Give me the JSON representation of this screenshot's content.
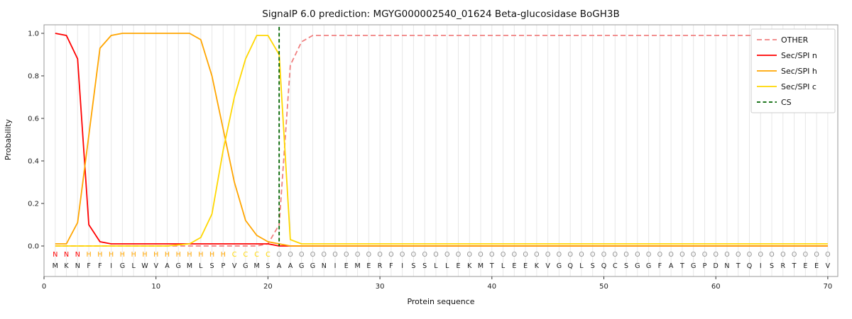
{
  "chart_data": {
    "type": "line",
    "title": "SignalP 6.0 prediction: MGYG000002540_01624 Beta-glucosidase BoGH3B",
    "xlabel": "Protein sequence",
    "ylabel": "Probability",
    "x_ticks": [
      0,
      10,
      20,
      30,
      40,
      50,
      60,
      70
    ],
    "y_ticks": [
      0,
      0.2,
      0.4,
      0.6,
      0.8,
      1.0
    ],
    "xlim": [
      0,
      71
    ],
    "ylim": [
      0,
      1.05
    ],
    "grid": "vertical line per residue",
    "legend_position": "upper right",
    "series": [
      {
        "name": "OTHER",
        "color": "#f08080",
        "dash": "7,4",
        "values": [
          0,
          0,
          0,
          0,
          0,
          0,
          0,
          0,
          0,
          0,
          0,
          0,
          0,
          0,
          0,
          0,
          0,
          0,
          0,
          0.01,
          0.1,
          0.85,
          0.96,
          0.99,
          0.99,
          0.99,
          0.99,
          0.99,
          0.99,
          0.99,
          0.99,
          0.99,
          0.99,
          0.99,
          0.99,
          0.99,
          0.99,
          0.99,
          0.99,
          0.99,
          0.99,
          0.99,
          0.99,
          0.99,
          0.99,
          0.99,
          0.99,
          0.99,
          0.99,
          0.99,
          0.99,
          0.99,
          0.99,
          0.99,
          0.99,
          0.99,
          0.99,
          0.99,
          0.99,
          0.99,
          0.99,
          0.99,
          0.99,
          0.99,
          0.99,
          0.99,
          0.99,
          0.99,
          0.99,
          0.99
        ]
      },
      {
        "name": "Sec/SPI n",
        "color": "#ff0000",
        "dash": null,
        "values": [
          1,
          0.99,
          0.88,
          0.1,
          0.02,
          0.01,
          0.01,
          0.01,
          0.01,
          0.01,
          0.01,
          0.01,
          0.01,
          0.01,
          0.01,
          0.01,
          0.01,
          0.01,
          0.01,
          0.01,
          0,
          0,
          0,
          0,
          0,
          0,
          0,
          0,
          0,
          0,
          0,
          0,
          0,
          0,
          0,
          0,
          0,
          0,
          0,
          0,
          0,
          0,
          0,
          0,
          0,
          0,
          0,
          0,
          0,
          0,
          0,
          0,
          0,
          0,
          0,
          0,
          0,
          0,
          0,
          0,
          0,
          0,
          0,
          0,
          0,
          0,
          0,
          0,
          0,
          0
        ]
      },
      {
        "name": "Sec/SPI h",
        "color": "#ffa500",
        "dash": null,
        "values": [
          0.01,
          0.01,
          0.11,
          0.52,
          0.93,
          0.99,
          1,
          1,
          1,
          1,
          1,
          1,
          1,
          0.97,
          0.8,
          0.55,
          0.3,
          0.12,
          0.05,
          0.02,
          0.01,
          0,
          0,
          0,
          0,
          0,
          0,
          0,
          0,
          0,
          0,
          0,
          0,
          0,
          0,
          0,
          0,
          0,
          0,
          0,
          0,
          0,
          0,
          0,
          0,
          0,
          0,
          0,
          0,
          0,
          0,
          0,
          0,
          0,
          0,
          0,
          0,
          0,
          0,
          0,
          0,
          0,
          0,
          0,
          0,
          0,
          0,
          0,
          0,
          0
        ]
      },
      {
        "name": "Sec/SPI c",
        "color": "#ffd700",
        "dash": null,
        "values": [
          0,
          0,
          0,
          0,
          0,
          0,
          0,
          0,
          0,
          0,
          0,
          0.005,
          0.01,
          0.04,
          0.15,
          0.45,
          0.7,
          0.88,
          0.99,
          0.99,
          0.9,
          0.03,
          0.01,
          0.01,
          0.01,
          0.01,
          0.01,
          0.01,
          0.01,
          0.01,
          0.01,
          0.01,
          0.01,
          0.01,
          0.01,
          0.01,
          0.01,
          0.01,
          0.01,
          0.01,
          0.01,
          0.01,
          0.01,
          0.01,
          0.01,
          0.01,
          0.01,
          0.01,
          0.01,
          0.01,
          0.01,
          0.01,
          0.01,
          0.01,
          0.01,
          0.01,
          0.01,
          0.01,
          0.01,
          0.01,
          0.01,
          0.01,
          0.01,
          0.01,
          0.01,
          0.01,
          0.01,
          0.01,
          0.01,
          0.01
        ]
      }
    ],
    "cs_line": {
      "name": "CS",
      "position": 21,
      "color": "#006400",
      "dash": "5,3.5"
    },
    "legend": [
      "OTHER",
      "Sec/SPI n",
      "Sec/SPI h",
      "Sec/SPI c",
      "CS"
    ],
    "sequence": {
      "residues": "MKNFFIGLWVAGMLSPVGMSAAGGNIEMERFISSLLEKMTLEEKVGQLSQCSGGFATGPDNTQISRTEEV",
      "region_labels": "NNNHHHHHHHHHHHHHCCCCOOOOOOOOOOOOOOOOOOOOOOOOOOOOOOOOOOOOOOOOOOOOOOOOOO",
      "region_colors": {
        "N": "#ff0000",
        "H": "#ffa500",
        "C": "#ffd700",
        "O": "#909090"
      },
      "residue_color": "#1a1a1a"
    }
  }
}
